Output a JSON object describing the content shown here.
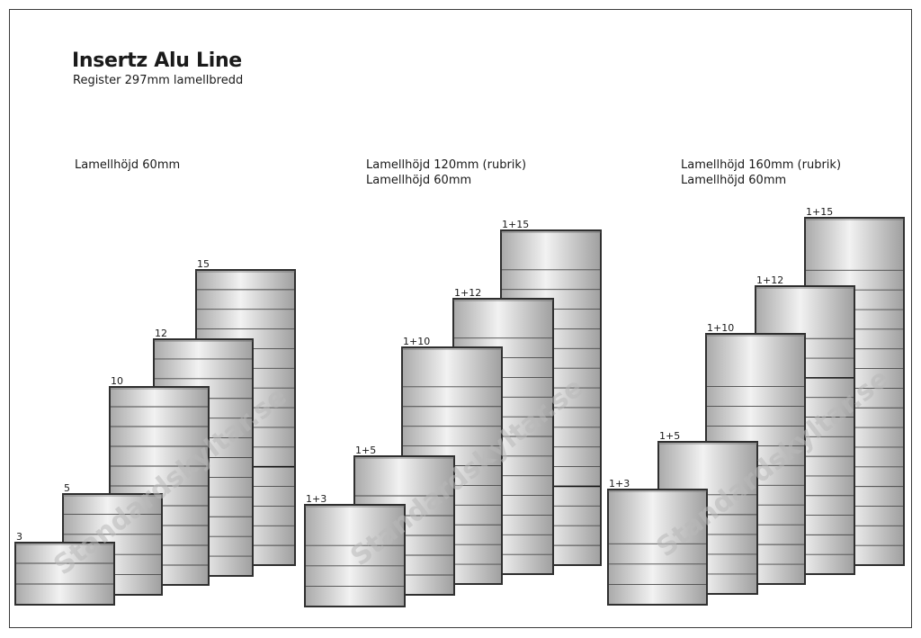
{
  "header": {
    "title": "Insertz Alu Line",
    "subtitle": "Register 297mm lamellbredd"
  },
  "watermark": "Standardskyltar.se",
  "colors": {
    "frame": "#3a3a3a",
    "cabinet_fill": "#d9d9d9",
    "cabinet_edge": "#2f2f2f",
    "slat_line": "#4a4a4a"
  },
  "groups": [
    {
      "label_lines": [
        "Lamellhöjd 60mm"
      ],
      "cabinets": [
        {
          "label": "15",
          "slats": 15
        },
        {
          "label": "12",
          "slats": 12
        },
        {
          "label": "10",
          "slats": 10
        },
        {
          "label": "5",
          "slats": 5
        },
        {
          "label": "3",
          "slats": 3
        }
      ]
    },
    {
      "label_lines": [
        "Lamellhöjd 120mm (rubrik)",
        "Lamellhöjd 60mm"
      ],
      "cabinets": [
        {
          "label": "1+15",
          "slats": 16
        },
        {
          "label": "1+12",
          "slats": 13
        },
        {
          "label": "1+10",
          "slats": 11
        },
        {
          "label": "1+5",
          "slats": 6
        },
        {
          "label": "1+3",
          "slats": 4
        }
      ]
    },
    {
      "label_lines": [
        "Lamellhöjd 160mm (rubrik)",
        "Lamellhöjd 60mm"
      ],
      "cabinets": [
        {
          "label": "1+15",
          "slats": 16
        },
        {
          "label": "1+12",
          "slats": 13
        },
        {
          "label": "1+10",
          "slats": 11
        },
        {
          "label": "1+5",
          "slats": 6
        },
        {
          "label": "1+3",
          "slats": 4
        }
      ]
    }
  ]
}
